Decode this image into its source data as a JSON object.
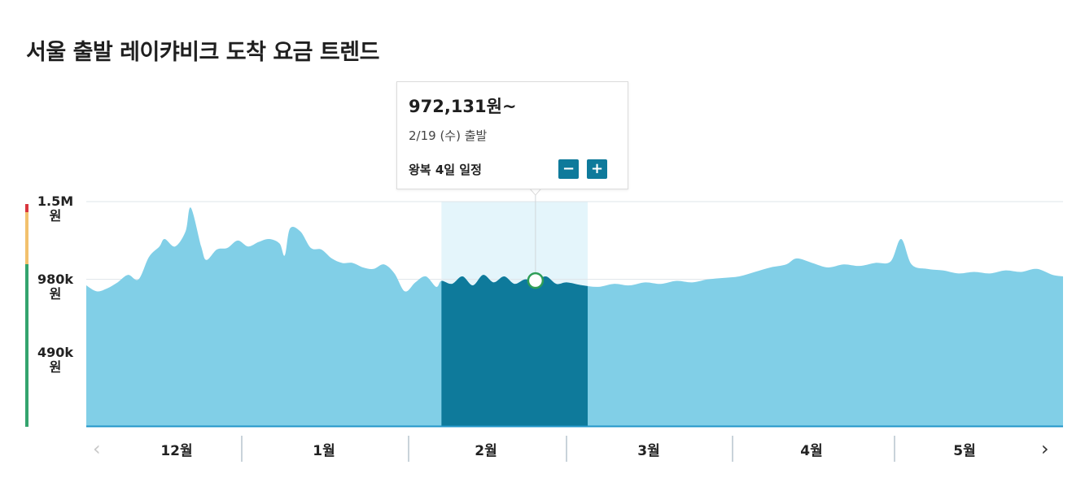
{
  "title": "서울 출발 레이캬비크 도착 요금 트렌드",
  "tooltip": {
    "price": "972,131원~",
    "date": "2/19 (수) 출발",
    "trip": "왕복 4일 일정",
    "minus_label": "−",
    "plus_label": "+"
  },
  "nav": {
    "prev_label": "‹",
    "next_label": "›"
  },
  "colors": {
    "area": "#81cfe7",
    "area_highlight": "#0e7a9b",
    "highlight_band": "#e4f5fb",
    "baseline": "#2196c9",
    "scale_red": "#d9363e",
    "scale_yellow": "#f2c16d",
    "scale_green": "#34a46e",
    "marker_stroke": "#2e9e57"
  },
  "chart_data": {
    "type": "area",
    "title": "서울 출발 레이캬비크 도착 요금 트렌드",
    "xlabel": "",
    "ylabel": "",
    "y_ticks": [
      {
        "value": 1500000,
        "label": "1.5M\n원"
      },
      {
        "value": 980000,
        "label": "980k\n원"
      },
      {
        "value": 490000,
        "label": "490k\n원"
      }
    ],
    "ylim": [
      0,
      1500000
    ],
    "grid": true,
    "x_domain": [
      "2024-11-25",
      "2025-05-31"
    ],
    "months": [
      {
        "label": "12월",
        "start": "2024-12-01",
        "end": "2024-12-31"
      },
      {
        "label": "1월",
        "start": "2025-01-01",
        "end": "2025-01-31"
      },
      {
        "label": "2월",
        "start": "2025-02-01",
        "end": "2025-02-28"
      },
      {
        "label": "3월",
        "start": "2025-03-01",
        "end": "2025-03-31"
      },
      {
        "label": "4월",
        "start": "2025-04-01",
        "end": "2025-04-30"
      },
      {
        "label": "5월",
        "start": "2025-05-01",
        "end": "2025-05-31"
      }
    ],
    "highlight_month": "2월",
    "selected_point": {
      "date": "2025-02-19",
      "value": 972131
    },
    "series": [
      {
        "points": [
          [
            "2024-11-25",
            940000
          ],
          [
            "2024-11-27",
            900000
          ],
          [
            "2024-11-29",
            920000
          ],
          [
            "2024-12-01",
            960000
          ],
          [
            "2024-12-03",
            1010000
          ],
          [
            "2024-12-05",
            980000
          ],
          [
            "2024-12-07",
            1130000
          ],
          [
            "2024-12-09",
            1200000
          ],
          [
            "2024-12-10",
            1250000
          ],
          [
            "2024-12-12",
            1200000
          ],
          [
            "2024-12-14",
            1300000
          ],
          [
            "2024-12-15",
            1460000
          ],
          [
            "2024-12-17",
            1200000
          ],
          [
            "2024-12-18",
            1110000
          ],
          [
            "2024-12-20",
            1180000
          ],
          [
            "2024-12-22",
            1190000
          ],
          [
            "2024-12-24",
            1240000
          ],
          [
            "2024-12-26",
            1200000
          ],
          [
            "2024-12-28",
            1230000
          ],
          [
            "2024-12-30",
            1250000
          ],
          [
            "2025-01-01",
            1220000
          ],
          [
            "2025-01-02",
            1140000
          ],
          [
            "2025-01-03",
            1320000
          ],
          [
            "2025-01-05",
            1300000
          ],
          [
            "2025-01-07",
            1190000
          ],
          [
            "2025-01-09",
            1180000
          ],
          [
            "2025-01-11",
            1120000
          ],
          [
            "2025-01-13",
            1090000
          ],
          [
            "2025-01-15",
            1090000
          ],
          [
            "2025-01-17",
            1060000
          ],
          [
            "2025-01-19",
            1050000
          ],
          [
            "2025-01-21",
            1080000
          ],
          [
            "2025-01-23",
            1020000
          ],
          [
            "2025-01-25",
            900000
          ],
          [
            "2025-01-27",
            960000
          ],
          [
            "2025-01-29",
            1000000
          ],
          [
            "2025-01-31",
            930000
          ],
          [
            "2025-02-01",
            970000
          ],
          [
            "2025-02-03",
            950000
          ],
          [
            "2025-02-05",
            1000000
          ],
          [
            "2025-02-07",
            940000
          ],
          [
            "2025-02-09",
            1010000
          ],
          [
            "2025-02-11",
            960000
          ],
          [
            "2025-02-13",
            1000000
          ],
          [
            "2025-02-15",
            950000
          ],
          [
            "2025-02-17",
            980000
          ],
          [
            "2025-02-19",
            972131
          ],
          [
            "2025-02-21",
            1000000
          ],
          [
            "2025-02-23",
            950000
          ],
          [
            "2025-02-25",
            960000
          ],
          [
            "2025-02-28",
            940000
          ],
          [
            "2025-03-03",
            930000
          ],
          [
            "2025-03-06",
            950000
          ],
          [
            "2025-03-09",
            940000
          ],
          [
            "2025-03-12",
            960000
          ],
          [
            "2025-03-15",
            950000
          ],
          [
            "2025-03-18",
            970000
          ],
          [
            "2025-03-21",
            960000
          ],
          [
            "2025-03-24",
            980000
          ],
          [
            "2025-03-27",
            990000
          ],
          [
            "2025-03-30",
            1000000
          ],
          [
            "2025-04-02",
            1030000
          ],
          [
            "2025-04-05",
            1060000
          ],
          [
            "2025-04-08",
            1080000
          ],
          [
            "2025-04-10",
            1120000
          ],
          [
            "2025-04-13",
            1090000
          ],
          [
            "2025-04-16",
            1060000
          ],
          [
            "2025-04-19",
            1080000
          ],
          [
            "2025-04-22",
            1070000
          ],
          [
            "2025-04-25",
            1090000
          ],
          [
            "2025-04-28",
            1100000
          ],
          [
            "2025-04-30",
            1250000
          ],
          [
            "2025-05-02",
            1080000
          ],
          [
            "2025-05-05",
            1050000
          ],
          [
            "2025-05-08",
            1040000
          ],
          [
            "2025-05-11",
            1020000
          ],
          [
            "2025-05-14",
            1030000
          ],
          [
            "2025-05-17",
            1020000
          ],
          [
            "2025-05-20",
            1040000
          ],
          [
            "2025-05-23",
            1030000
          ],
          [
            "2025-05-26",
            1050000
          ],
          [
            "2025-05-29",
            1010000
          ],
          [
            "2025-05-31",
            1000000
          ]
        ]
      }
    ]
  }
}
